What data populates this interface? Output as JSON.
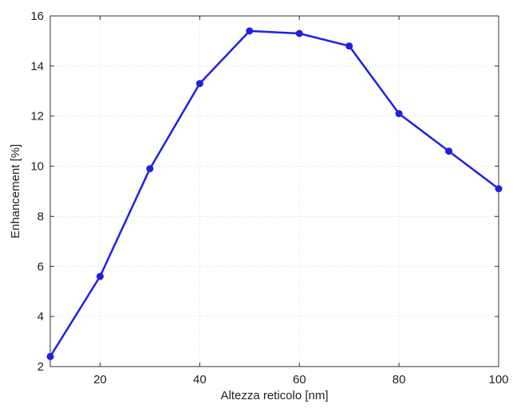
{
  "chart_data": {
    "type": "line",
    "title": "",
    "xlabel": "Altezza reticolo [nm]",
    "ylabel": "Enhancement [%]",
    "xlim": [
      10,
      100
    ],
    "ylim": [
      2,
      16
    ],
    "xticks": [
      20,
      40,
      60,
      80,
      100
    ],
    "yticks": [
      2,
      4,
      6,
      8,
      10,
      12,
      14,
      16
    ],
    "grid": true,
    "legend": "none",
    "series": [
      {
        "color": "#1f1fe6",
        "marker": "circle",
        "x": [
          10,
          20,
          30,
          40,
          50,
          60,
          70,
          80,
          90,
          100
        ],
        "y": [
          2.4,
          5.6,
          9.9,
          13.3,
          15.4,
          15.3,
          14.8,
          12.1,
          10.6,
          9.1
        ]
      }
    ]
  }
}
